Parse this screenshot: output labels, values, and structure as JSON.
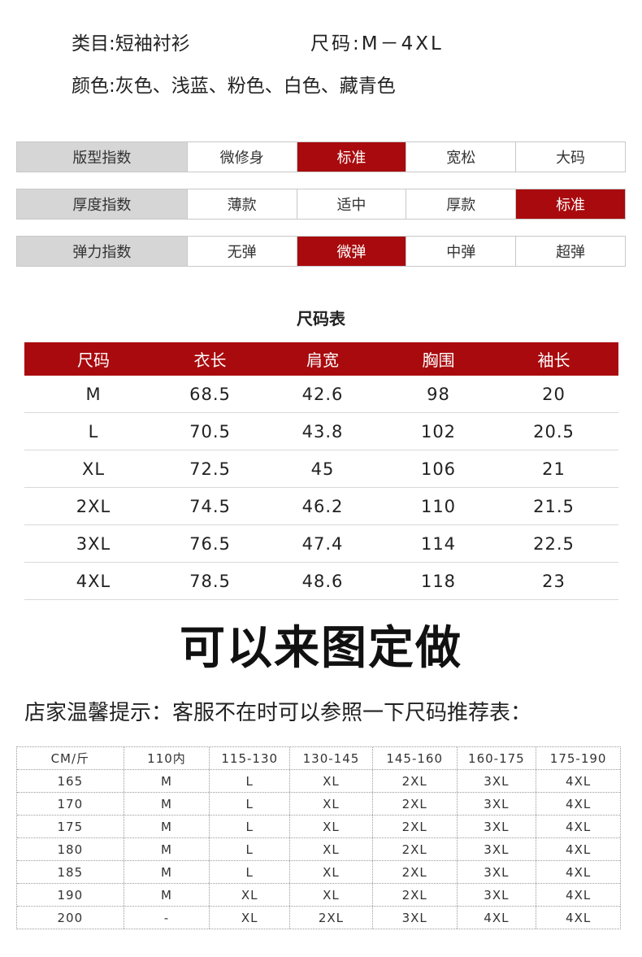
{
  "product": {
    "category": "类目:短袖衬衫",
    "size_range": "尺码:M－4XL",
    "colors": "颜色:灰色、浅蓝、粉色、白色、藏青色"
  },
  "indices": [
    {
      "label": "版型指数",
      "options": [
        "微修身",
        "标准",
        "宽松",
        "大码"
      ],
      "selected": 1
    },
    {
      "label": "厚度指数",
      "options": [
        "薄款",
        "适中",
        "厚款",
        "标准"
      ],
      "selected": 3
    },
    {
      "label": "弹力指数",
      "options": [
        "无弹",
        "微弹",
        "中弹",
        "超弹"
      ],
      "selected": 1
    }
  ],
  "size_table": {
    "title": "尺码表",
    "headers": [
      "尺码",
      "衣长",
      "肩宽",
      "胸围",
      "袖长"
    ],
    "rows": [
      [
        "M",
        "68.5",
        "42.6",
        "98",
        "20"
      ],
      [
        "L",
        "70.5",
        "43.8",
        "102",
        "20.5"
      ],
      [
        "XL",
        "72.5",
        "45",
        "106",
        "21"
      ],
      [
        "2XL",
        "74.5",
        "46.2",
        "110",
        "21.5"
      ],
      [
        "3XL",
        "76.5",
        "47.4",
        "114",
        "22.5"
      ],
      [
        "4XL",
        "78.5",
        "48.6",
        "118",
        "23"
      ]
    ]
  },
  "custom_banner": "可以来图定做",
  "tip": "店家温馨提示：客服不在时可以参照一下尺码推荐表：",
  "recommend_table": {
    "headers": [
      "CM/斤",
      "110内",
      "115-130",
      "130-145",
      "145-160",
      "160-175",
      "175-190"
    ],
    "rows": [
      [
        "165",
        "M",
        "L",
        "XL",
        "2XL",
        "3XL",
        "4XL"
      ],
      [
        "170",
        "M",
        "L",
        "XL",
        "2XL",
        "3XL",
        "4XL"
      ],
      [
        "175",
        "M",
        "L",
        "XL",
        "2XL",
        "3XL",
        "4XL"
      ],
      [
        "180",
        "M",
        "L",
        "XL",
        "2XL",
        "3XL",
        "4XL"
      ],
      [
        "185",
        "M",
        "L",
        "XL",
        "2XL",
        "3XL",
        "4XL"
      ],
      [
        "190",
        "M",
        "XL",
        "XL",
        "2XL",
        "3XL",
        "4XL"
      ],
      [
        "200",
        "-",
        "XL",
        "2XL",
        "3XL",
        "4XL",
        "4XL"
      ]
    ]
  },
  "colors_theme": {
    "accent": "#a90a0d",
    "label_bg": "#d6d6d6"
  }
}
